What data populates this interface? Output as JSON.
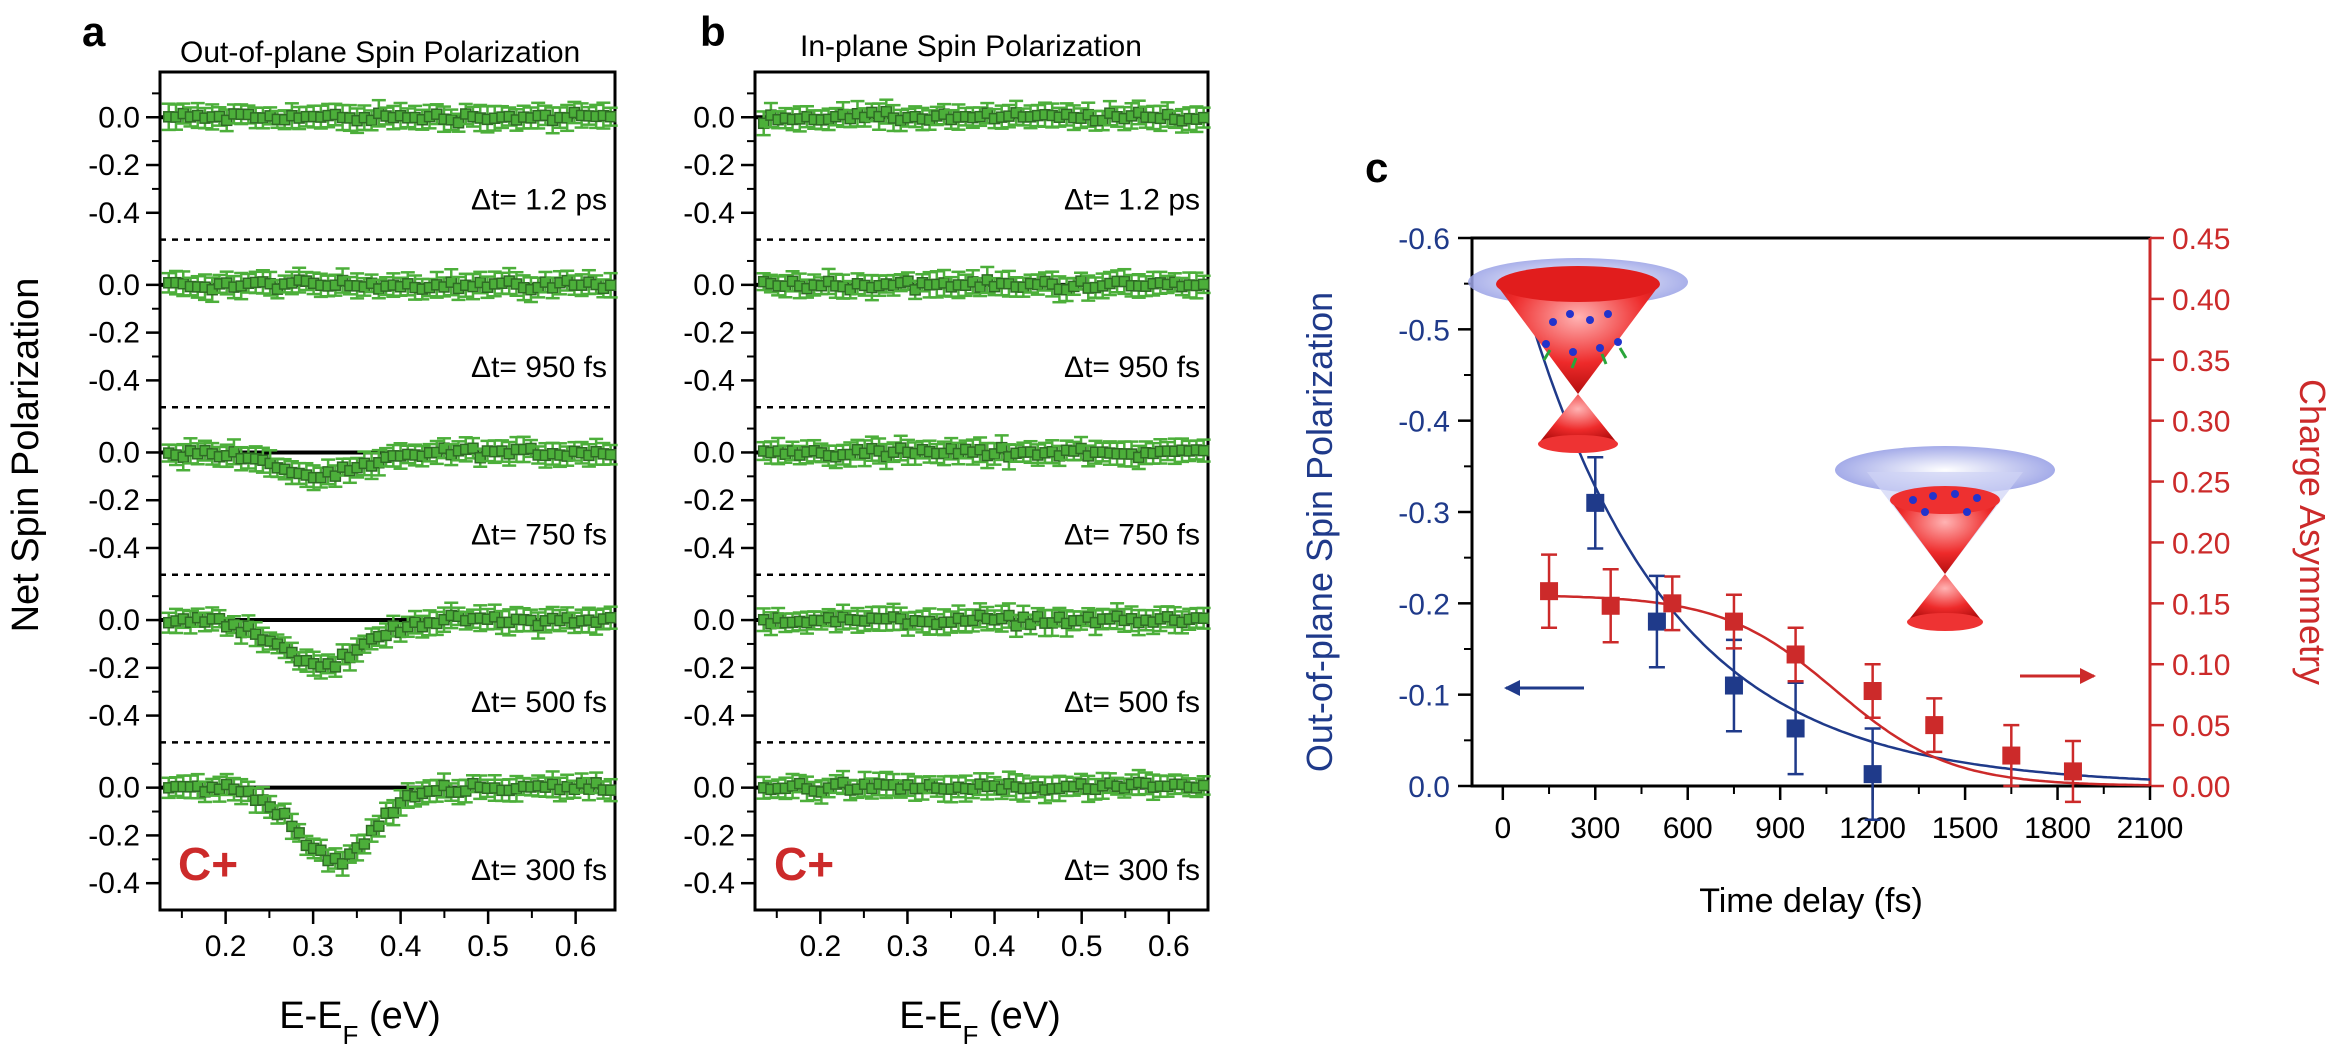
{
  "panels": {
    "a": {
      "letter": "a",
      "title": "Out-of-plane Spin Polarization",
      "cplus": "C+"
    },
    "b": {
      "letter": "b",
      "title": "In-plane Spin Polarization",
      "cplus": "C+"
    },
    "c": {
      "letter": "c"
    }
  },
  "shared": {
    "ylabel": "Net Spin Polarization",
    "xlabel_main": "E-E",
    "xlabel_sub": "F",
    "xlabel_tail": " (eV)"
  },
  "colors": {
    "green": "#4caf3a",
    "green_dark": "#2f6b25",
    "blue": "#1f3a8a",
    "red": "#cc2a2a"
  },
  "chart_data": [
    {
      "type": "scatter",
      "id": "a",
      "title": "Out-of-plane Spin Polarization",
      "xlabel": "E-EF (eV)",
      "ylabel": "Net Spin Polarization",
      "xlim": [
        0.125,
        0.645
      ],
      "xticks": [
        "0.2",
        "0.3",
        "0.4",
        "0.5",
        "0.6"
      ],
      "yticks": [
        "0.0",
        "-0.2",
        "-0.4"
      ],
      "subpanels": [
        {
          "label": "Δt= 1.2 ps",
          "dip_center": 0.33,
          "dip_depth": 0.0,
          "dip_width": 0.06
        },
        {
          "label": "Δt= 950 fs",
          "dip_center": 0.33,
          "dip_depth": 0.0,
          "dip_width": 0.06
        },
        {
          "label": "Δt= 750 fs",
          "dip_center": 0.31,
          "dip_depth": 0.1,
          "dip_width": 0.07
        },
        {
          "label": "Δt= 500 fs",
          "dip_center": 0.31,
          "dip_depth": 0.19,
          "dip_width": 0.065
        },
        {
          "label": "Δt= 300 fs",
          "dip_center": 0.325,
          "dip_depth": 0.31,
          "dip_width": 0.06
        }
      ]
    },
    {
      "type": "scatter",
      "id": "b",
      "title": "In-plane Spin Polarization",
      "xlabel": "E-EF (eV)",
      "xlim": [
        0.125,
        0.645
      ],
      "xticks": [
        "0.2",
        "0.3",
        "0.4",
        "0.5",
        "0.6"
      ],
      "yticks": [
        "0.0",
        "-0.2",
        "-0.4"
      ],
      "subpanels": [
        {
          "label": "Δt= 1.2 ps",
          "dip_center": 0.33,
          "dip_depth": 0.0,
          "dip_width": 0.06
        },
        {
          "label": "Δt= 950 fs",
          "dip_center": 0.33,
          "dip_depth": 0.0,
          "dip_width": 0.06
        },
        {
          "label": "Δt= 750 fs",
          "dip_center": 0.33,
          "dip_depth": 0.0,
          "dip_width": 0.06
        },
        {
          "label": "Δt= 500 fs",
          "dip_center": 0.33,
          "dip_depth": 0.0,
          "dip_width": 0.06
        },
        {
          "label": "Δt= 300 fs",
          "dip_center": 0.33,
          "dip_depth": 0.0,
          "dip_width": 0.06
        }
      ]
    },
    {
      "type": "scatter",
      "id": "c",
      "xlabel": "Time delay (fs)",
      "ylabel_left": "Out-of-plane Spin Polarization",
      "ylabel_right": "Charge Asymmetry",
      "xlim": [
        -100,
        2100
      ],
      "xticks": [
        "0",
        "300",
        "600",
        "900",
        "1200",
        "1500",
        "1800",
        "2100"
      ],
      "ylim_left": [
        0.0,
        -0.6
      ],
      "yticks_left": [
        "0.0",
        "-0.1",
        "-0.2",
        "-0.3",
        "-0.4",
        "-0.5",
        "-0.6"
      ],
      "ylim_right": [
        0.0,
        0.45
      ],
      "yticks_right": [
        "0.00",
        "0.05",
        "0.10",
        "0.15",
        "0.20",
        "0.25",
        "0.30",
        "0.35",
        "0.40",
        "0.45"
      ],
      "series": [
        {
          "name": "Out-of-plane Spin Polarization",
          "axis": "left",
          "color": "#1f3a8a",
          "x": [
            300,
            500,
            750,
            950,
            1200
          ],
          "y": [
            -0.31,
            -0.18,
            -0.11,
            -0.063,
            -0.013
          ],
          "err": [
            0.05,
            0.05,
            0.05,
            0.05,
            0.05
          ]
        },
        {
          "name": "Charge Asymmetry",
          "axis": "right",
          "color": "#cc2a2a",
          "x": [
            150,
            350,
            550,
            750,
            950,
            1200,
            1400,
            1650,
            1850
          ],
          "y": [
            0.16,
            0.148,
            0.15,
            0.135,
            0.108,
            0.078,
            0.05,
            0.025,
            0.012
          ],
          "err": [
            0.03,
            0.03,
            0.022,
            0.022,
            0.022,
            0.022,
            0.022,
            0.025,
            0.025
          ]
        }
      ],
      "fits": [
        {
          "axis": "left",
          "model": "exp",
          "amp": -0.62,
          "tau": 470,
          "x_start": 80,
          "x_end": 2100
        },
        {
          "axis": "right",
          "model": "sigmoid",
          "amp": 0.157,
          "x0": 1080,
          "width": 185,
          "x_start": 150,
          "x_end": 2100
        }
      ],
      "arrows": [
        {
          "direction": "left"
        },
        {
          "direction": "right"
        }
      ]
    }
  ]
}
